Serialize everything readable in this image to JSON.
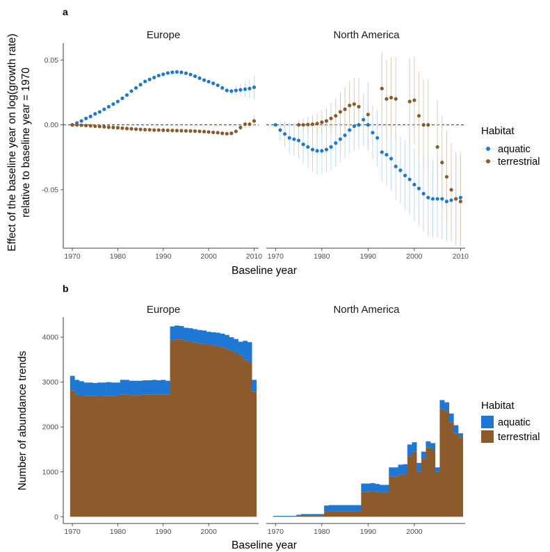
{
  "colors": {
    "aquatic": "#1f77d4",
    "terrestrial": "#8c5a2b",
    "aquatic_ci": "#c4dcf2",
    "terrestrial_ci": "#dfcfb9"
  },
  "chart_data": [
    {
      "panel": "a",
      "type": "scatter",
      "xlabel": "Baseline year",
      "ylabel": "Effect of the baseline year on log(growth rate)\nrelative to baseline year = 1970",
      "ylim": [
        -0.095,
        0.063
      ],
      "xlim": [
        1968,
        2011
      ],
      "yticks": [
        0.05,
        0.0,
        -0.05
      ],
      "ytick_labels": [
        "0.05",
        "0.00",
        "-0.05"
      ],
      "xticks": [
        1970,
        1980,
        1990,
        2000,
        2010
      ],
      "reference_line": 0,
      "legend": {
        "title": "Habitat",
        "position": "right",
        "entries": [
          "aquatic",
          "terrestrial"
        ]
      },
      "facets": [
        {
          "name": "Europe",
          "series": [
            {
              "name": "aquatic",
              "x": [
                1970,
                1971,
                1972,
                1973,
                1974,
                1975,
                1976,
                1977,
                1978,
                1979,
                1980,
                1981,
                1982,
                1983,
                1984,
                1985,
                1986,
                1987,
                1988,
                1989,
                1990,
                1991,
                1992,
                1993,
                1994,
                1995,
                1996,
                1997,
                1998,
                1999,
                2000,
                2001,
                2002,
                2003,
                2004,
                2005,
                2006,
                2007,
                2008,
                2009,
                2010
              ],
              "y": [
                0,
                0.0015,
                0.003,
                0.005,
                0.0065,
                0.0085,
                0.01,
                0.012,
                0.014,
                0.016,
                0.018,
                0.0205,
                0.023,
                0.026,
                0.0285,
                0.031,
                0.0335,
                0.035,
                0.0365,
                0.038,
                0.039,
                0.04,
                0.0405,
                0.0408,
                0.0405,
                0.0398,
                0.0388,
                0.0375,
                0.036,
                0.0345,
                0.0333,
                0.032,
                0.0305,
                0.0285,
                0.0265,
                0.026,
                0.0265,
                0.027,
                0.0275,
                0.028,
                0.029
              ],
              "ci": [
                0,
                0.001,
                0.001,
                0.001,
                0.001,
                0.001,
                0.001,
                0.001,
                0.001,
                0.001,
                0.001,
                0.001,
                0.001,
                0.001,
                0.001,
                0.001,
                0.001,
                0.001,
                0.001,
                0.001,
                0.001,
                0.001,
                0.001,
                0.001,
                0.001,
                0.001,
                0.001,
                0.001,
                0.001,
                0.001,
                0.001,
                0.001,
                0.001,
                0.002,
                0.002,
                0.003,
                0.004,
                0.005,
                0.006,
                0.007,
                0.009
              ]
            },
            {
              "name": "terrestrial",
              "x": [
                1970,
                1971,
                1972,
                1973,
                1974,
                1975,
                1976,
                1977,
                1978,
                1979,
                1980,
                1981,
                1982,
                1983,
                1984,
                1985,
                1986,
                1987,
                1988,
                1989,
                1990,
                1991,
                1992,
                1993,
                1994,
                1995,
                1996,
                1997,
                1998,
                1999,
                2000,
                2001,
                2002,
                2003,
                2004,
                2005,
                2006,
                2007,
                2008,
                2009,
                2010
              ],
              "y": [
                0,
                0,
                -0.0003,
                -0.0005,
                -0.0007,
                -0.001,
                -0.0012,
                -0.0015,
                -0.0018,
                -0.002,
                -0.0022,
                -0.0025,
                -0.0028,
                -0.003,
                -0.0033,
                -0.0035,
                -0.0037,
                -0.0038,
                -0.004,
                -0.004,
                -0.0041,
                -0.0042,
                -0.0043,
                -0.0044,
                -0.0045,
                -0.0046,
                -0.0047,
                -0.0048,
                -0.005,
                -0.0052,
                -0.0055,
                -0.0058,
                -0.006,
                -0.0065,
                -0.0068,
                -0.0065,
                -0.005,
                -0.002,
                0.0005,
                0.0005,
                0.003
              ],
              "ci": [
                0,
                0.0004,
                0.0004,
                0.0004,
                0.0004,
                0.0004,
                0.0004,
                0.0004,
                0.0004,
                0.0004,
                0.0004,
                0.0004,
                0.0004,
                0.0004,
                0.0004,
                0.0004,
                0.0004,
                0.0004,
                0.0004,
                0.0004,
                0.0004,
                0.0004,
                0.0004,
                0.0004,
                0.0004,
                0.0004,
                0.0004,
                0.0004,
                0.0004,
                0.0004,
                0.0005,
                0.0005,
                0.0005,
                0.0006,
                0.0008,
                0.001,
                0.0015,
                0.002,
                0.003,
                0.003,
                0.004
              ]
            }
          ]
        },
        {
          "name": "North America",
          "series": [
            {
              "name": "aquatic",
              "x": [
                1970,
                1971,
                1972,
                1973,
                1974,
                1975,
                1976,
                1977,
                1978,
                1979,
                1980,
                1981,
                1982,
                1983,
                1984,
                1985,
                1986,
                1987,
                1988,
                1989,
                1990,
                1991,
                1992,
                1993,
                1994,
                1995,
                1996,
                1997,
                1998,
                1999,
                2000,
                2001,
                2002,
                2003,
                2004,
                2005,
                2006,
                2007,
                2008,
                2009,
                2010
              ],
              "y": [
                0,
                -0.004,
                -0.007,
                -0.01,
                -0.011,
                -0.012,
                -0.015,
                -0.017,
                -0.019,
                -0.02,
                -0.02,
                -0.019,
                -0.017,
                -0.014,
                -0.011,
                -0.008,
                -0.004,
                -0.001,
                0.0,
                0.004,
                0.0,
                -0.006,
                -0.01,
                -0.021,
                -0.023,
                -0.026,
                -0.032,
                -0.035,
                -0.039,
                -0.042,
                -0.046,
                -0.049,
                -0.053,
                -0.056,
                -0.057,
                -0.057,
                -0.057,
                -0.059,
                -0.058,
                -0.057,
                -0.056
              ],
              "ci": [
                0,
                0.008,
                0.01,
                0.012,
                0.013,
                0.014,
                0.015,
                0.016,
                0.017,
                0.018,
                0.018,
                0.018,
                0.018,
                0.018,
                0.018,
                0.018,
                0.018,
                0.019,
                0.019,
                0.02,
                0.02,
                0.021,
                0.022,
                0.023,
                0.024,
                0.025,
                0.026,
                0.026,
                0.027,
                0.028,
                0.028,
                0.029,
                0.029,
                0.03,
                0.03,
                0.03,
                0.031,
                0.031,
                0.032,
                0.033,
                0.035
              ]
            },
            {
              "name": "terrestrial",
              "x": [
                1975,
                1976,
                1977,
                1978,
                1979,
                1980,
                1981,
                1982,
                1983,
                1984,
                1985,
                1986,
                1987,
                1988,
                1990,
                1993,
                1994,
                1995,
                1996,
                1999,
                2000,
                2001,
                2002,
                2003,
                2005,
                2006,
                2007,
                2008,
                2009,
                2010
              ],
              "y": [
                0.0,
                0.0,
                0.0003,
                0.0005,
                0.001,
                0.002,
                0.003,
                0.005,
                0.007,
                0.01,
                0.012,
                0.015,
                0.016,
                0.014,
                0.008,
                0.028,
                0.02,
                0.021,
                0.02,
                0.018,
                0.019,
                0.007,
                0.0,
                0.0,
                -0.017,
                -0.029,
                -0.04,
                -0.05,
                -0.057,
                -0.059
              ],
              "ci": [
                0.004,
                0.005,
                0.006,
                0.007,
                0.008,
                0.009,
                0.01,
                0.012,
                0.013,
                0.015,
                0.017,
                0.019,
                0.02,
                0.022,
                0.025,
                0.028,
                0.03,
                0.031,
                0.032,
                0.033,
                0.034,
                0.034,
                0.035,
                0.035,
                0.036,
                0.036,
                0.036,
                0.036,
                0.036,
                0.035
              ]
            }
          ]
        }
      ]
    },
    {
      "panel": "b",
      "type": "bar",
      "stacked": true,
      "xlabel": "Baseline year",
      "ylabel": "Number of abundance trends",
      "ylim": [
        -150,
        4450
      ],
      "xlim": [
        1968,
        2011
      ],
      "yticks": [
        0,
        1000,
        2000,
        3000,
        4000
      ],
      "ytick_labels": [
        "0",
        "1000",
        "2000",
        "3000",
        "4000"
      ],
      "xticks": [
        1970,
        1980,
        1990,
        2000
      ],
      "legend": {
        "title": "Habitat",
        "position": "right",
        "entries": [
          "aquatic",
          "terrestrial"
        ]
      },
      "facets": [
        {
          "name": "Europe",
          "x": [
            1970,
            1971,
            1972,
            1973,
            1974,
            1975,
            1976,
            1977,
            1978,
            1979,
            1980,
            1981,
            1982,
            1983,
            1984,
            1985,
            1986,
            1987,
            1988,
            1989,
            1990,
            1991,
            1992,
            1993,
            1994,
            1995,
            1996,
            1997,
            1998,
            1999,
            2000,
            2001,
            2002,
            2003,
            2004,
            2005,
            2006,
            2007,
            2008,
            2009,
            2010
          ],
          "series": [
            {
              "name": "terrestrial",
              "values": [
                2820,
                2720,
                2700,
                2690,
                2690,
                2690,
                2700,
                2690,
                2690,
                2690,
                2700,
                2720,
                2720,
                2710,
                2710,
                2710,
                2720,
                2720,
                2720,
                2720,
                2720,
                2720,
                3940,
                3950,
                3950,
                3920,
                3900,
                3880,
                3860,
                3850,
                3830,
                3820,
                3800,
                3780,
                3740,
                3700,
                3660,
                3600,
                3500,
                3450,
                2780
              ]
            },
            {
              "name": "aquatic",
              "values": [
                320,
                330,
                320,
                300,
                300,
                290,
                290,
                300,
                310,
                300,
                290,
                330,
                330,
                320,
                320,
                320,
                320,
                320,
                330,
                320,
                330,
                310,
                300,
                310,
                300,
                290,
                300,
                300,
                300,
                300,
                290,
                290,
                300,
                300,
                310,
                300,
                300,
                300,
                420,
                440,
                270
              ]
            }
          ]
        },
        {
          "name": "North America",
          "x": [
            1970,
            1971,
            1972,
            1973,
            1974,
            1975,
            1976,
            1977,
            1978,
            1979,
            1980,
            1981,
            1982,
            1983,
            1984,
            1985,
            1986,
            1987,
            1988,
            1989,
            1990,
            1991,
            1992,
            1993,
            1994,
            1995,
            1996,
            1997,
            1998,
            1999,
            2000,
            2001,
            2002,
            2003,
            2004,
            2005,
            2006,
            2007,
            2008,
            2009,
            2010
          ],
          "series": [
            {
              "name": "terrestrial",
              "values": [
                5,
                5,
                5,
                5,
                5,
                20,
                30,
                30,
                30,
                30,
                30,
                110,
                120,
                120,
                120,
                120,
                120,
                120,
                120,
                550,
                560,
                570,
                560,
                540,
                540,
                900,
                900,
                940,
                940,
                1350,
                1450,
                1000,
                1300,
                1550,
                1500,
                1000,
                2400,
                2350,
                2100,
                1850,
                1780
              ]
            },
            {
              "name": "aquatic",
              "values": [
                15,
                15,
                15,
                15,
                15,
                25,
                30,
                30,
                30,
                30,
                30,
                140,
                140,
                140,
                140,
                140,
                140,
                140,
                140,
                190,
                180,
                180,
                170,
                170,
                170,
                200,
                200,
                220,
                230,
                260,
                210,
                200,
                150,
                130,
                140,
                100,
                200,
                200,
                200,
                190,
                80
              ]
            }
          ]
        }
      ]
    }
  ],
  "labels": {
    "panel_a_tag": "a",
    "panel_b_tag": "b",
    "facet_europe": "Europe",
    "facet_north_america": "North America",
    "x_axis_title": "Baseline year",
    "a_y_title_line1": "Effect of the baseline year on log(growth rate)",
    "a_y_title_line2": "relative to baseline year = 1970",
    "b_y_title": "Number of abundance trends",
    "legend_title": "Habitat",
    "legend_aquatic": "aquatic",
    "legend_terrestrial": "terrestrial"
  }
}
